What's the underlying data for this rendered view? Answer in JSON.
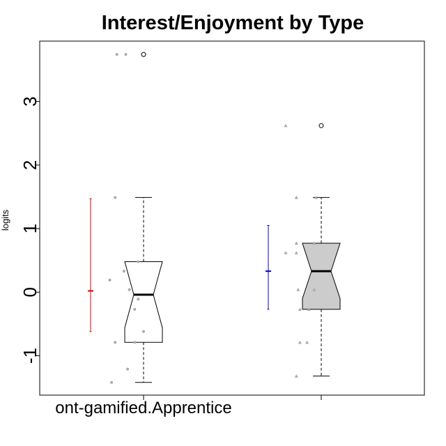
{
  "chart_data": {
    "type": "boxplot",
    "title": "Interest/Enjoyment by Type",
    "ylabel": "logits",
    "xlabel": "",
    "ylim": [
      -1.62,
      3.95
    ],
    "yticks": [
      -1,
      0,
      1,
      2,
      3
    ],
    "grid": false,
    "legend": "none",
    "categories": [
      {
        "label": "Non-gamified.Apprentice",
        "display": "ont-gamified.Apprentice"
      },
      {
        "label": "",
        "display": ""
      }
    ],
    "groups": [
      {
        "box_fill": "#ffffff",
        "notched": true,
        "box": {
          "whisker_low": -1.42,
          "q1": -0.79,
          "median": -0.04,
          "q3": 0.48,
          "whisker_high": 1.49,
          "notch_low": -0.56,
          "notch_high": 0.48
        },
        "outliers": [
          3.74
        ],
        "mean_bar": {
          "color": "#e00000",
          "mean": 0.02,
          "low": -0.62,
          "high": 1.47
        },
        "points_color": "#aaaaaa",
        "point_shape": "circle",
        "points": [
          {
            "dx": -0.15,
            "y": 3.74
          },
          {
            "dx": -0.1,
            "y": 3.74
          },
          {
            "dx": -0.16,
            "y": 1.49
          },
          {
            "dx": -0.03,
            "y": 0.48
          },
          {
            "dx": -0.11,
            "y": 0.33
          },
          {
            "dx": -0.19,
            "y": 0.19
          },
          {
            "dx": -0.08,
            "y": 0.04
          },
          {
            "dx": -0.03,
            "y": -0.11
          },
          {
            "dx": -0.05,
            "y": -0.27
          },
          {
            "dx": 0.0,
            "y": -0.62
          },
          {
            "dx": -0.16,
            "y": -0.79
          },
          {
            "dx": -0.05,
            "y": -0.79
          },
          {
            "dx": -0.09,
            "y": -1.21
          },
          {
            "dx": -0.18,
            "y": -1.42
          }
        ]
      },
      {
        "box_fill": "#cccccc",
        "notched": true,
        "box": {
          "whisker_low": -1.32,
          "q1": -0.27,
          "median": 0.33,
          "q3": 0.77,
          "whisker_high": 1.49,
          "notch_low": -0.1,
          "notch_high": 0.77
        },
        "outliers": [
          2.62
        ],
        "mean_bar": {
          "color": "#0000c8",
          "mean": 0.33,
          "low": -0.27,
          "high": 1.05
        },
        "points_color": "#aaaaaa",
        "point_shape": "triangle",
        "points": [
          {
            "dx": -0.2,
            "y": 2.62
          },
          {
            "dx": -0.14,
            "y": 1.49
          },
          {
            "dx": -0.03,
            "y": 1.49
          },
          {
            "dx": -0.14,
            "y": 0.77
          },
          {
            "dx": -0.04,
            "y": 0.77
          },
          {
            "dx": -0.2,
            "y": 0.62
          },
          {
            "dx": -0.14,
            "y": 0.62
          },
          {
            "dx": -0.13,
            "y": 0.04
          },
          {
            "dx": -0.04,
            "y": 0.04
          },
          {
            "dx": -0.12,
            "y": -0.27
          },
          {
            "dx": -0.07,
            "y": -0.27
          },
          {
            "dx": -0.12,
            "y": -0.79
          },
          {
            "dx": -0.08,
            "y": -0.79
          },
          {
            "dx": -0.14,
            "y": -1.32
          }
        ]
      }
    ]
  }
}
